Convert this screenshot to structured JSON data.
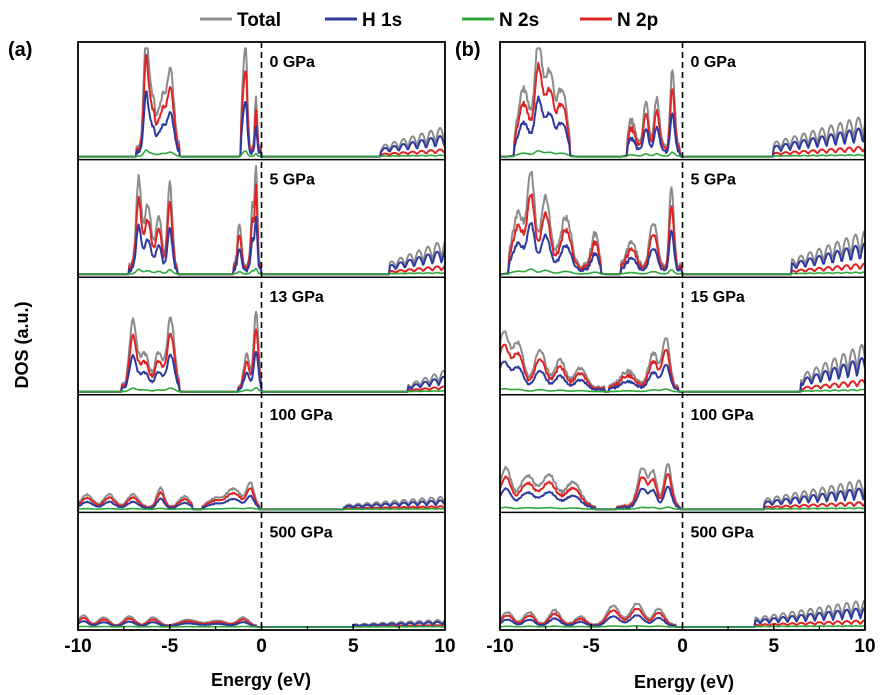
{
  "legend": [
    {
      "name": "Total",
      "color": "#8c8c8c"
    },
    {
      "name": "H 1s",
      "color": "#2d3a9e"
    },
    {
      "name": "N 2s",
      "color": "#2fa83a"
    },
    {
      "name": "N 2p",
      "color": "#e02424"
    }
  ],
  "chart_data": [
    {
      "type": "line",
      "panel_label": "(a)",
      "xlabel": "Energy (eV)",
      "ylabel": "DOS (a.u.)",
      "xlim": [
        -10,
        10
      ],
      "xticks": [
        "-10",
        "-5",
        "0",
        "5",
        "10"
      ],
      "fermi_level": 0,
      "legend_position": "top",
      "series": [
        "Total",
        "H 1s",
        "N 2s",
        "N 2p"
      ],
      "subplots": [
        {
          "pressure": "0 GPa",
          "valence": [
            {
              "c": -6.3,
              "w": 0.12,
              "h": 0.95
            },
            {
              "c": -6.0,
              "w": 0.2,
              "h": 0.5
            },
            {
              "c": -5.4,
              "w": 0.2,
              "h": 0.45
            },
            {
              "c": -4.95,
              "w": 0.18,
              "h": 0.7
            },
            {
              "c": -1.0,
              "w": 0.08,
              "h": 0.55
            },
            {
              "c": -0.85,
              "w": 0.08,
              "h": 0.85
            },
            {
              "c": -0.3,
              "w": 0.06,
              "h": 0.5
            }
          ],
          "vrange": [
            -6.8,
            -4.5,
            -1.1,
            -0.05
          ],
          "conduction": {
            "start": 6.5,
            "end": 10,
            "h": 0.28
          }
        },
        {
          "pressure": "5 GPa",
          "valence": [
            {
              "c": -6.7,
              "w": 0.13,
              "h": 0.8
            },
            {
              "c": -6.2,
              "w": 0.2,
              "h": 0.55
            },
            {
              "c": -5.6,
              "w": 0.15,
              "h": 0.45
            },
            {
              "c": -5.0,
              "w": 0.13,
              "h": 0.75
            },
            {
              "c": -1.2,
              "w": 0.1,
              "h": 0.4
            },
            {
              "c": -0.5,
              "w": 0.08,
              "h": 0.55
            },
            {
              "c": -0.3,
              "w": 0.07,
              "h": 0.95
            }
          ],
          "vrange": [
            -7.2,
            -4.6,
            -1.5,
            -0.05
          ],
          "conduction": {
            "start": 7.0,
            "end": 10,
            "h": 0.32
          }
        },
        {
          "pressure": "13 GPa",
          "valence": [
            {
              "c": -7.0,
              "w": 0.18,
              "h": 0.6
            },
            {
              "c": -6.4,
              "w": 0.25,
              "h": 0.3
            },
            {
              "c": -5.6,
              "w": 0.2,
              "h": 0.3
            },
            {
              "c": -4.95,
              "w": 0.2,
              "h": 0.62
            },
            {
              "c": -0.8,
              "w": 0.15,
              "h": 0.3
            },
            {
              "c": -0.3,
              "w": 0.12,
              "h": 0.7
            }
          ],
          "vrange": [
            -7.6,
            -4.5,
            -1.3,
            0.0
          ],
          "conduction": {
            "start": 8.0,
            "end": 10,
            "h": 0.2
          }
        },
        {
          "pressure": "100 GPa",
          "valence": [
            {
              "c": -9.5,
              "w": 0.3,
              "h": 0.12
            },
            {
              "c": -8.3,
              "w": 0.3,
              "h": 0.12
            },
            {
              "c": -7.0,
              "w": 0.3,
              "h": 0.12
            },
            {
              "c": -5.5,
              "w": 0.2,
              "h": 0.18
            },
            {
              "c": -4.2,
              "w": 0.3,
              "h": 0.1
            },
            {
              "c": -2.5,
              "w": 0.4,
              "h": 0.08
            },
            {
              "c": -1.5,
              "w": 0.4,
              "h": 0.17
            },
            {
              "c": -0.6,
              "w": 0.2,
              "h": 0.22
            }
          ],
          "vrange": [
            -10,
            -3.8,
            -3.2,
            -0.1
          ],
          "conduction": {
            "start": 4.5,
            "end": 10,
            "h": 0.12
          }
        },
        {
          "pressure": "500 GPa",
          "valence": [
            {
              "c": -9.7,
              "w": 0.25,
              "h": 0.1
            },
            {
              "c": -8.6,
              "w": 0.3,
              "h": 0.08
            },
            {
              "c": -7.2,
              "w": 0.3,
              "h": 0.09
            },
            {
              "c": -5.9,
              "w": 0.3,
              "h": 0.08
            },
            {
              "c": -4.0,
              "w": 0.5,
              "h": 0.06
            },
            {
              "c": -2.4,
              "w": 0.5,
              "h": 0.05
            },
            {
              "c": -1.0,
              "w": 0.3,
              "h": 0.08
            }
          ],
          "vrange": [
            -10,
            -0.3,
            -10,
            -0.3
          ],
          "conduction": {
            "start": 5.0,
            "end": 10,
            "h": 0.07
          }
        }
      ]
    },
    {
      "type": "line",
      "panel_label": "(b)",
      "xlabel": "Energy (eV)",
      "ylabel": "",
      "xlim": [
        -10,
        10
      ],
      "xticks": [
        "-10",
        "-5",
        "0",
        "5",
        "10"
      ],
      "fermi_level": 0,
      "legend_position": "top",
      "series": [
        "Total",
        "H 1s",
        "N 2s",
        "N 2p"
      ],
      "subplots": [
        {
          "pressure": "0 GPa",
          "valence": [
            {
              "c": -8.7,
              "w": 0.3,
              "h": 0.55
            },
            {
              "c": -7.9,
              "w": 0.2,
              "h": 0.95
            },
            {
              "c": -7.3,
              "w": 0.25,
              "h": 0.7
            },
            {
              "c": -6.6,
              "w": 0.25,
              "h": 0.55
            },
            {
              "c": -2.8,
              "w": 0.2,
              "h": 0.25
            },
            {
              "c": -2.0,
              "w": 0.15,
              "h": 0.42
            },
            {
              "c": -1.4,
              "w": 0.15,
              "h": 0.45
            },
            {
              "c": -0.55,
              "w": 0.12,
              "h": 0.72
            }
          ],
          "vrange": [
            -9.2,
            -6.2,
            -3.0,
            -0.1
          ],
          "conduction": {
            "start": 5.0,
            "end": 10,
            "h": 0.38
          }
        },
        {
          "pressure": "5 GPa",
          "valence": [
            {
              "c": -9.0,
              "w": 0.3,
              "h": 0.5
            },
            {
              "c": -8.3,
              "w": 0.2,
              "h": 0.85
            },
            {
              "c": -7.5,
              "w": 0.25,
              "h": 0.65
            },
            {
              "c": -6.4,
              "w": 0.3,
              "h": 0.45
            },
            {
              "c": -4.8,
              "w": 0.2,
              "h": 0.3
            },
            {
              "c": -2.8,
              "w": 0.25,
              "h": 0.22
            },
            {
              "c": -1.6,
              "w": 0.2,
              "h": 0.42
            },
            {
              "c": -0.6,
              "w": 0.12,
              "h": 0.75
            }
          ],
          "vrange": [
            -9.5,
            -4.5,
            -3.4,
            -0.05
          ],
          "conduction": {
            "start": 6.0,
            "end": 10,
            "h": 0.4
          }
        },
        {
          "pressure": "15 GPa",
          "valence": [
            {
              "c": -9.8,
              "w": 0.3,
              "h": 0.5
            },
            {
              "c": -9.0,
              "w": 0.3,
              "h": 0.4
            },
            {
              "c": -7.8,
              "w": 0.3,
              "h": 0.35
            },
            {
              "c": -6.7,
              "w": 0.3,
              "h": 0.25
            },
            {
              "c": -5.6,
              "w": 0.3,
              "h": 0.18
            },
            {
              "c": -3.0,
              "w": 0.4,
              "h": 0.15
            },
            {
              "c": -1.6,
              "w": 0.25,
              "h": 0.32
            },
            {
              "c": -0.9,
              "w": 0.2,
              "h": 0.45
            }
          ],
          "vrange": [
            -10,
            -4.3,
            -4.0,
            -0.2
          ],
          "conduction": {
            "start": 6.5,
            "end": 10,
            "h": 0.45
          }
        },
        {
          "pressure": "100 GPa",
          "valence": [
            {
              "c": -9.7,
              "w": 0.3,
              "h": 0.35
            },
            {
              "c": -8.5,
              "w": 0.4,
              "h": 0.28
            },
            {
              "c": -7.3,
              "w": 0.4,
              "h": 0.28
            },
            {
              "c": -6.0,
              "w": 0.4,
              "h": 0.22
            },
            {
              "c": -2.2,
              "w": 0.25,
              "h": 0.35
            },
            {
              "c": -1.6,
              "w": 0.2,
              "h": 0.3
            },
            {
              "c": -0.8,
              "w": 0.2,
              "h": 0.38
            }
          ],
          "vrange": [
            -10,
            -4.8,
            -3.6,
            -0.1
          ],
          "conduction": {
            "start": 4.5,
            "end": 10,
            "h": 0.28
          }
        },
        {
          "pressure": "500 GPa",
          "valence": [
            {
              "c": -9.6,
              "w": 0.3,
              "h": 0.12
            },
            {
              "c": -8.4,
              "w": 0.3,
              "h": 0.12
            },
            {
              "c": -7.0,
              "w": 0.3,
              "h": 0.14
            },
            {
              "c": -5.6,
              "w": 0.3,
              "h": 0.08
            },
            {
              "c": -3.8,
              "w": 0.35,
              "h": 0.18
            },
            {
              "c": -2.5,
              "w": 0.35,
              "h": 0.2
            },
            {
              "c": -1.3,
              "w": 0.3,
              "h": 0.15
            }
          ],
          "vrange": [
            -10,
            -0.4,
            -10,
            -0.4
          ],
          "conduction": {
            "start": 4.0,
            "end": 10,
            "h": 0.25
          }
        }
      ]
    }
  ]
}
